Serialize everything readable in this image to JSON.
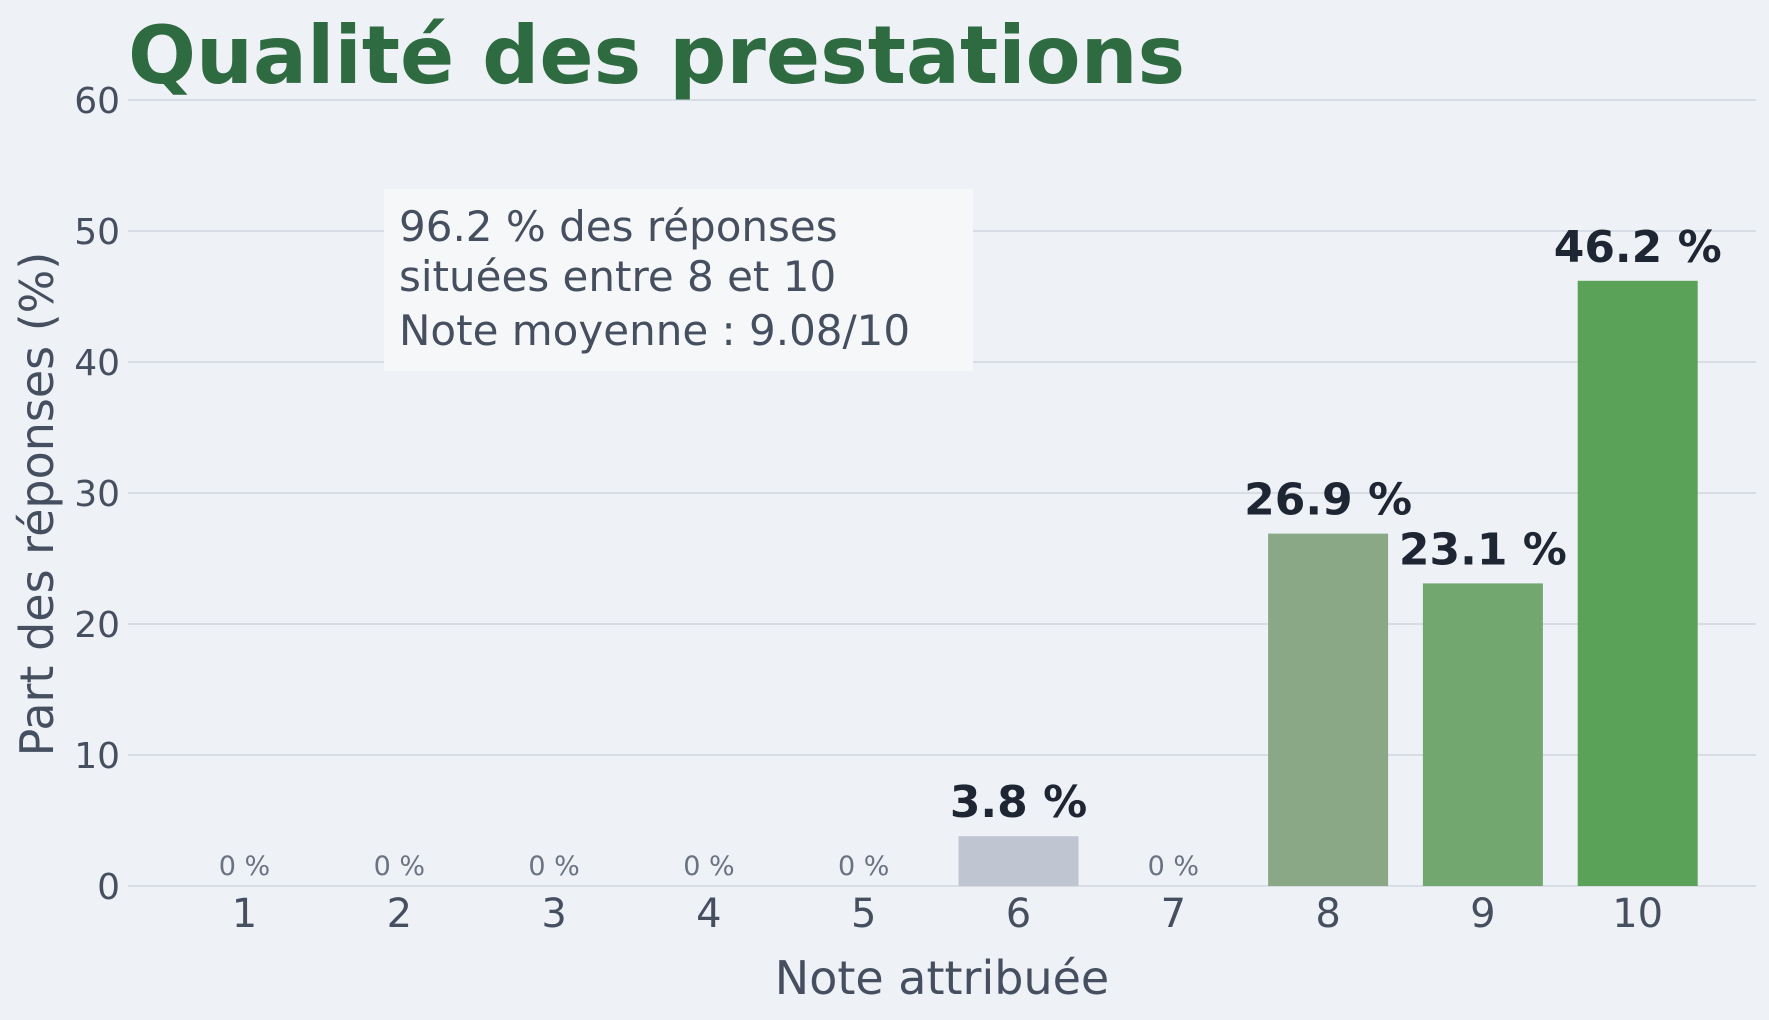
{
  "chart_data": {
    "type": "bar",
    "title": "Qualité des prestations",
    "xlabel": "Note attribuée",
    "ylabel": "Part des réponses (%)",
    "ylim": [
      0,
      60
    ],
    "yticks": [
      0,
      10,
      20,
      30,
      40,
      50,
      60
    ],
    "grid": true,
    "categories": [
      "1",
      "2",
      "3",
      "4",
      "5",
      "6",
      "7",
      "8",
      "9",
      "10"
    ],
    "values": [
      0,
      0,
      0,
      0,
      0,
      3.8,
      0,
      26.9,
      23.1,
      46.2
    ],
    "value_labels": [
      "0 %",
      "0 %",
      "0 %",
      "0 %",
      "0 %",
      "3.8 %",
      "0 %",
      "26.9 %",
      "23.1 %",
      "46.2 %"
    ],
    "bar_colors": [
      "#bfc5d1",
      "#bfc5d1",
      "#bfc5d1",
      "#bfc5d1",
      "#bfc5d1",
      "#bfc5d1",
      "#bfc5d1",
      "#8aa886",
      "#72a86f",
      "#5aa257"
    ],
    "annotation": {
      "lines": [
        "96.2 % des réponses",
        "situées entre 8 et 10",
        "Note moyenne : 9.08/10"
      ]
    },
    "colors": {
      "title": "#2e6b41",
      "background": "#eef1f6",
      "grid": "#d0d5de",
      "axis_text": "#464f5f",
      "value_label": "#1f2633",
      "zero_label": "#6b7383",
      "annotation_bg": "#f6f7f8"
    }
  }
}
